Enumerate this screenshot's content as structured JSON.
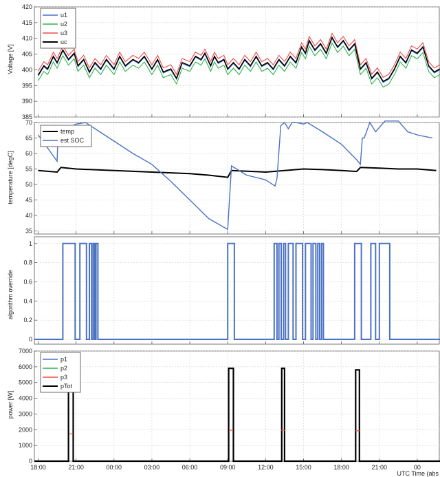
{
  "chart_data": [
    {
      "type": "line",
      "ylabel": "Voltage [V]",
      "ylim": [
        385,
        420
      ],
      "yticks": [
        385,
        390,
        395,
        400,
        405,
        410,
        415,
        420
      ],
      "grid": true,
      "legend": "top-left",
      "series": [
        {
          "name": "u1",
          "color": "#4a6fc9",
          "offset": 0
        },
        {
          "name": "u2",
          "color": "#2db34a",
          "offset": -1.5
        },
        {
          "name": "u3",
          "color": "#f04a4a",
          "offset": 1.6
        },
        {
          "name": "uc",
          "color": "#000000",
          "offset": 0.3
        }
      ],
      "x": [
        0.0,
        0.3,
        0.5,
        0.8,
        1.0,
        1.3,
        1.6,
        1.9,
        2.1,
        2.4,
        2.7,
        3.0,
        3.3,
        3.6,
        4.0,
        4.3,
        4.6,
        5.0,
        5.3,
        5.6,
        6.0,
        6.3,
        6.6,
        7.0,
        7.3,
        7.6,
        8.0,
        8.3,
        8.6,
        8.8,
        9.1,
        9.3,
        9.5,
        9.8,
        10.0,
        10.3,
        10.6,
        10.9,
        11.2,
        11.5,
        11.8,
        12.1,
        12.4,
        12.7,
        13.0,
        13.3,
        13.6,
        13.9,
        14.1,
        14.3,
        14.6,
        14.9,
        15.2,
        15.5,
        15.8,
        16.1,
        16.4,
        16.7,
        17.0,
        17.3,
        17.6,
        17.9,
        18.2,
        18.5,
        18.8,
        19.1,
        19.4,
        19.7,
        20.0,
        20.3,
        20.6,
        20.9,
        21.2
      ],
      "values": [
        398,
        401,
        400,
        404,
        402,
        406,
        403,
        405,
        401,
        403,
        399,
        402,
        400,
        403,
        400,
        404,
        401,
        403,
        402,
        404,
        400,
        403,
        399,
        400,
        397,
        402,
        401,
        404,
        403,
        405,
        401,
        404,
        402,
        403,
        400,
        402,
        400,
        403,
        401,
        404,
        401,
        402,
        400,
        403,
        401,
        404,
        402,
        407,
        405,
        409,
        406,
        408,
        405,
        410,
        407,
        409,
        406,
        408,
        400,
        402,
        397,
        399,
        396,
        397,
        400,
        404,
        402,
        406,
        405,
        407,
        401,
        399,
        400
      ],
      "xlim": [
        -0.2,
        21.2
      ]
    },
    {
      "type": "line",
      "ylabel": "temperature [degC]",
      "ylim": [
        34,
        70
      ],
      "yticks": [
        35,
        40,
        45,
        50,
        55,
        60,
        65,
        70
      ],
      "grid": true,
      "legend": "top-left",
      "series": [
        {
          "name": "temp",
          "color": "#000000",
          "x": [
            0.0,
            1.0,
            1.2,
            2.0,
            4.0,
            6.0,
            8.0,
            9.0,
            10.0,
            10.2,
            12.0,
            14.0,
            15.0,
            16.0,
            16.8,
            17.0,
            18.0,
            19.0,
            20.0,
            21.0
          ],
          "y": [
            54.5,
            54.0,
            55.5,
            55.0,
            54.5,
            54.0,
            53.5,
            53.0,
            52.3,
            54.5,
            54.0,
            55.0,
            54.8,
            54.5,
            54.2,
            55.5,
            55.3,
            55.0,
            55.0,
            54.5
          ]
        },
        {
          "name": "est SOC",
          "color": "#4a72c4",
          "x": [
            0.0,
            1.0,
            1.05,
            1.5,
            2.0,
            2.5,
            3.0,
            4.0,
            5.0,
            6.0,
            7.0,
            8.0,
            9.0,
            10.0,
            10.2,
            11.0,
            12.0,
            12.5,
            12.6,
            12.8,
            13.0,
            13.2,
            13.4,
            13.6,
            14.0,
            14.2,
            15.0,
            16.0,
            16.8,
            17.0,
            17.1,
            17.2,
            17.5,
            17.8,
            18.3,
            19.0,
            19.5,
            20.0,
            20.4,
            20.8
          ],
          "y": [
            66,
            57.5,
            67,
            68,
            69.5,
            70,
            68,
            64,
            60,
            56.5,
            51,
            45,
            39,
            35.5,
            56,
            53,
            51.5,
            49.5,
            52,
            69,
            70,
            68,
            70,
            70,
            69.5,
            70,
            67,
            63,
            58,
            56.5,
            65,
            65,
            70,
            67,
            70.5,
            70.5,
            67,
            66,
            65.5,
            65
          ]
        }
      ],
      "xlim": [
        -0.2,
        21.2
      ]
    },
    {
      "type": "line",
      "ylabel": "algorithm override",
      "ylim": [
        -0.05,
        1.07
      ],
      "yticks": [
        0,
        0.2,
        0.4,
        0.6,
        0.8,
        1
      ],
      "grid": true,
      "series": [
        {
          "name": "override",
          "color": "#4a72c4",
          "pulses": [
            [
              1.3,
              1.95
            ],
            [
              2.2,
              2.55
            ],
            [
              2.7,
              2.82
            ],
            [
              2.9,
              2.98
            ],
            [
              3.05,
              3.15
            ],
            [
              10.0,
              10.35
            ],
            [
              12.45,
              12.6
            ],
            [
              12.7,
              12.82
            ],
            [
              12.95,
              13.05
            ],
            [
              13.2,
              13.45
            ],
            [
              13.6,
              13.95
            ],
            [
              14.1,
              14.4
            ],
            [
              14.5,
              14.65
            ],
            [
              14.75,
              14.85
            ],
            [
              14.95,
              15.05
            ],
            [
              16.7,
              17.05
            ],
            [
              17.55,
              17.8
            ],
            [
              18.0,
              18.55
            ]
          ]
        }
      ],
      "xlim": [
        -0.2,
        21.2
      ]
    },
    {
      "type": "line",
      "ylabel": "power [W]",
      "ylim": [
        0,
        7000
      ],
      "yticks": [
        0,
        1000,
        2000,
        3000,
        4000,
        5000,
        6000,
        7000
      ],
      "grid": true,
      "legend": "top-left",
      "series": [
        {
          "name": "p1",
          "color": "#4a6fc9"
        },
        {
          "name": "p2",
          "color": "#2db34a"
        },
        {
          "name": "p3",
          "color": "#f04a4a"
        },
        {
          "name": "pTot",
          "color": "#000000",
          "pulses": [
            [
              1.6,
              1.85,
              5200
            ],
            [
              10.05,
              10.3,
              5900
            ],
            [
              12.85,
              13.0,
              5900
            ],
            [
              16.75,
              16.95,
              5800
            ]
          ]
        }
      ],
      "xlim": [
        -0.2,
        21.2
      ]
    }
  ],
  "xaxis": {
    "ticks": [
      {
        "pos": 0,
        "label": "18:00"
      },
      {
        "pos": 2,
        "label": "21:00"
      },
      {
        "pos": 4,
        "label": "00:00"
      },
      {
        "pos": 6,
        "label": "03:00"
      },
      {
        "pos": 8,
        "label": "06:00"
      },
      {
        "pos": 10,
        "label": "09:00"
      },
      {
        "pos": 12,
        "label": "12:00"
      },
      {
        "pos": 14,
        "label": "15:00"
      },
      {
        "pos": 16,
        "label": "18:00"
      },
      {
        "pos": 18,
        "label": "21:00"
      },
      {
        "pos": 20,
        "label": "00"
      }
    ],
    "label": "UTC Time (abs"
  }
}
